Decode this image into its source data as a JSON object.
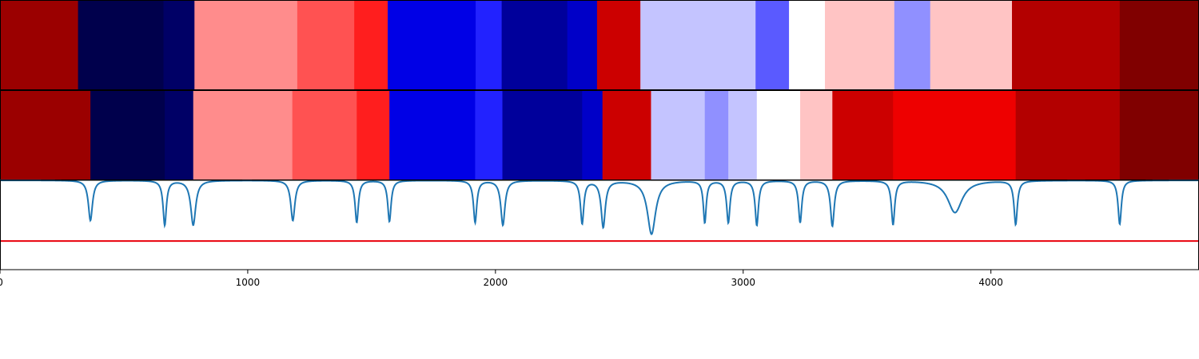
{
  "chart_data": {
    "type": "heatmap",
    "xlim": [
      0,
      4840
    ],
    "xticks": [
      0,
      1000,
      2000,
      3000,
      4000
    ],
    "xtick_labels": [
      "0",
      "1000",
      "2000",
      "3000",
      "4000"
    ],
    "track_1": {
      "segments": [
        {
          "start": 0,
          "end": 315,
          "color": "#9b0000"
        },
        {
          "start": 315,
          "end": 660,
          "color": "#00004c"
        },
        {
          "start": 660,
          "end": 785,
          "color": "#000066"
        },
        {
          "start": 785,
          "end": 1200,
          "color": "#ff8c8c"
        },
        {
          "start": 1200,
          "end": 1430,
          "color": "#ff5252"
        },
        {
          "start": 1430,
          "end": 1565,
          "color": "#ff1e1e"
        },
        {
          "start": 1565,
          "end": 1920,
          "color": "#0000e6"
        },
        {
          "start": 1920,
          "end": 2025,
          "color": "#2222ff"
        },
        {
          "start": 2025,
          "end": 2290,
          "color": "#00009b"
        },
        {
          "start": 2290,
          "end": 2410,
          "color": "#0000c8"
        },
        {
          "start": 2410,
          "end": 2585,
          "color": "#cc0000"
        },
        {
          "start": 2585,
          "end": 3050,
          "color": "#c4c4ff"
        },
        {
          "start": 3050,
          "end": 3185,
          "color": "#5a5aff"
        },
        {
          "start": 3185,
          "end": 3330,
          "color": "#ffffff"
        },
        {
          "start": 3330,
          "end": 3610,
          "color": "#ffc4c4"
        },
        {
          "start": 3610,
          "end": 3755,
          "color": "#9090ff"
        },
        {
          "start": 3755,
          "end": 4085,
          "color": "#ffc4c4"
        },
        {
          "start": 4085,
          "end": 4520,
          "color": "#b30000"
        },
        {
          "start": 4520,
          "end": 4840,
          "color": "#800000"
        }
      ]
    },
    "track_2": {
      "segments": [
        {
          "start": 0,
          "end": 365,
          "color": "#9b0000"
        },
        {
          "start": 365,
          "end": 665,
          "color": "#00004c"
        },
        {
          "start": 665,
          "end": 780,
          "color": "#000066"
        },
        {
          "start": 780,
          "end": 1180,
          "color": "#ff8c8c"
        },
        {
          "start": 1180,
          "end": 1440,
          "color": "#ff5252"
        },
        {
          "start": 1440,
          "end": 1572,
          "color": "#ff1e1e"
        },
        {
          "start": 1572,
          "end": 1918,
          "color": "#0000e6"
        },
        {
          "start": 1918,
          "end": 2028,
          "color": "#2222ff"
        },
        {
          "start": 2028,
          "end": 2350,
          "color": "#00009b"
        },
        {
          "start": 2350,
          "end": 2432,
          "color": "#0000c8"
        },
        {
          "start": 2432,
          "end": 2628,
          "color": "#cc0000"
        },
        {
          "start": 2628,
          "end": 2845,
          "color": "#c4c4ff"
        },
        {
          "start": 2845,
          "end": 2940,
          "color": "#9090ff"
        },
        {
          "start": 2940,
          "end": 3055,
          "color": "#c4c4ff"
        },
        {
          "start": 3055,
          "end": 3230,
          "color": "#ffffff"
        },
        {
          "start": 3230,
          "end": 3360,
          "color": "#ffc4c4"
        },
        {
          "start": 3360,
          "end": 3605,
          "color": "#cc0000"
        },
        {
          "start": 3605,
          "end": 4100,
          "color": "#ee0000"
        },
        {
          "start": 4100,
          "end": 4520,
          "color": "#b30000"
        },
        {
          "start": 4520,
          "end": 4840,
          "color": "#800000"
        }
      ]
    },
    "signal": {
      "color": "#1f77b4",
      "baseline": 1.0,
      "ylim": [
        0,
        1.0
      ],
      "dips": [
        {
          "x": 365,
          "depth": 0.45,
          "width": 10
        },
        {
          "x": 665,
          "depth": 0.5,
          "width": 8
        },
        {
          "x": 780,
          "depth": 0.5,
          "width": 12
        },
        {
          "x": 1182,
          "depth": 0.45,
          "width": 10
        },
        {
          "x": 1440,
          "depth": 0.47,
          "width": 8
        },
        {
          "x": 1572,
          "depth": 0.46,
          "width": 8
        },
        {
          "x": 1918,
          "depth": 0.47,
          "width": 8
        },
        {
          "x": 2030,
          "depth": 0.5,
          "width": 10
        },
        {
          "x": 2350,
          "depth": 0.48,
          "width": 8
        },
        {
          "x": 2435,
          "depth": 0.52,
          "width": 10
        },
        {
          "x": 2630,
          "depth": 0.6,
          "width": 20
        },
        {
          "x": 2845,
          "depth": 0.47,
          "width": 7
        },
        {
          "x": 2940,
          "depth": 0.47,
          "width": 8
        },
        {
          "x": 3055,
          "depth": 0.5,
          "width": 8
        },
        {
          "x": 3230,
          "depth": 0.47,
          "width": 8
        },
        {
          "x": 3360,
          "depth": 0.51,
          "width": 9
        },
        {
          "x": 3605,
          "depth": 0.49,
          "width": 8
        },
        {
          "x": 3855,
          "depth": 0.36,
          "width": 35
        },
        {
          "x": 4100,
          "depth": 0.49,
          "width": 8
        },
        {
          "x": 4520,
          "depth": 0.49,
          "width": 8
        }
      ]
    },
    "threshold": {
      "y": 0.32,
      "color": "#e8000b"
    }
  }
}
